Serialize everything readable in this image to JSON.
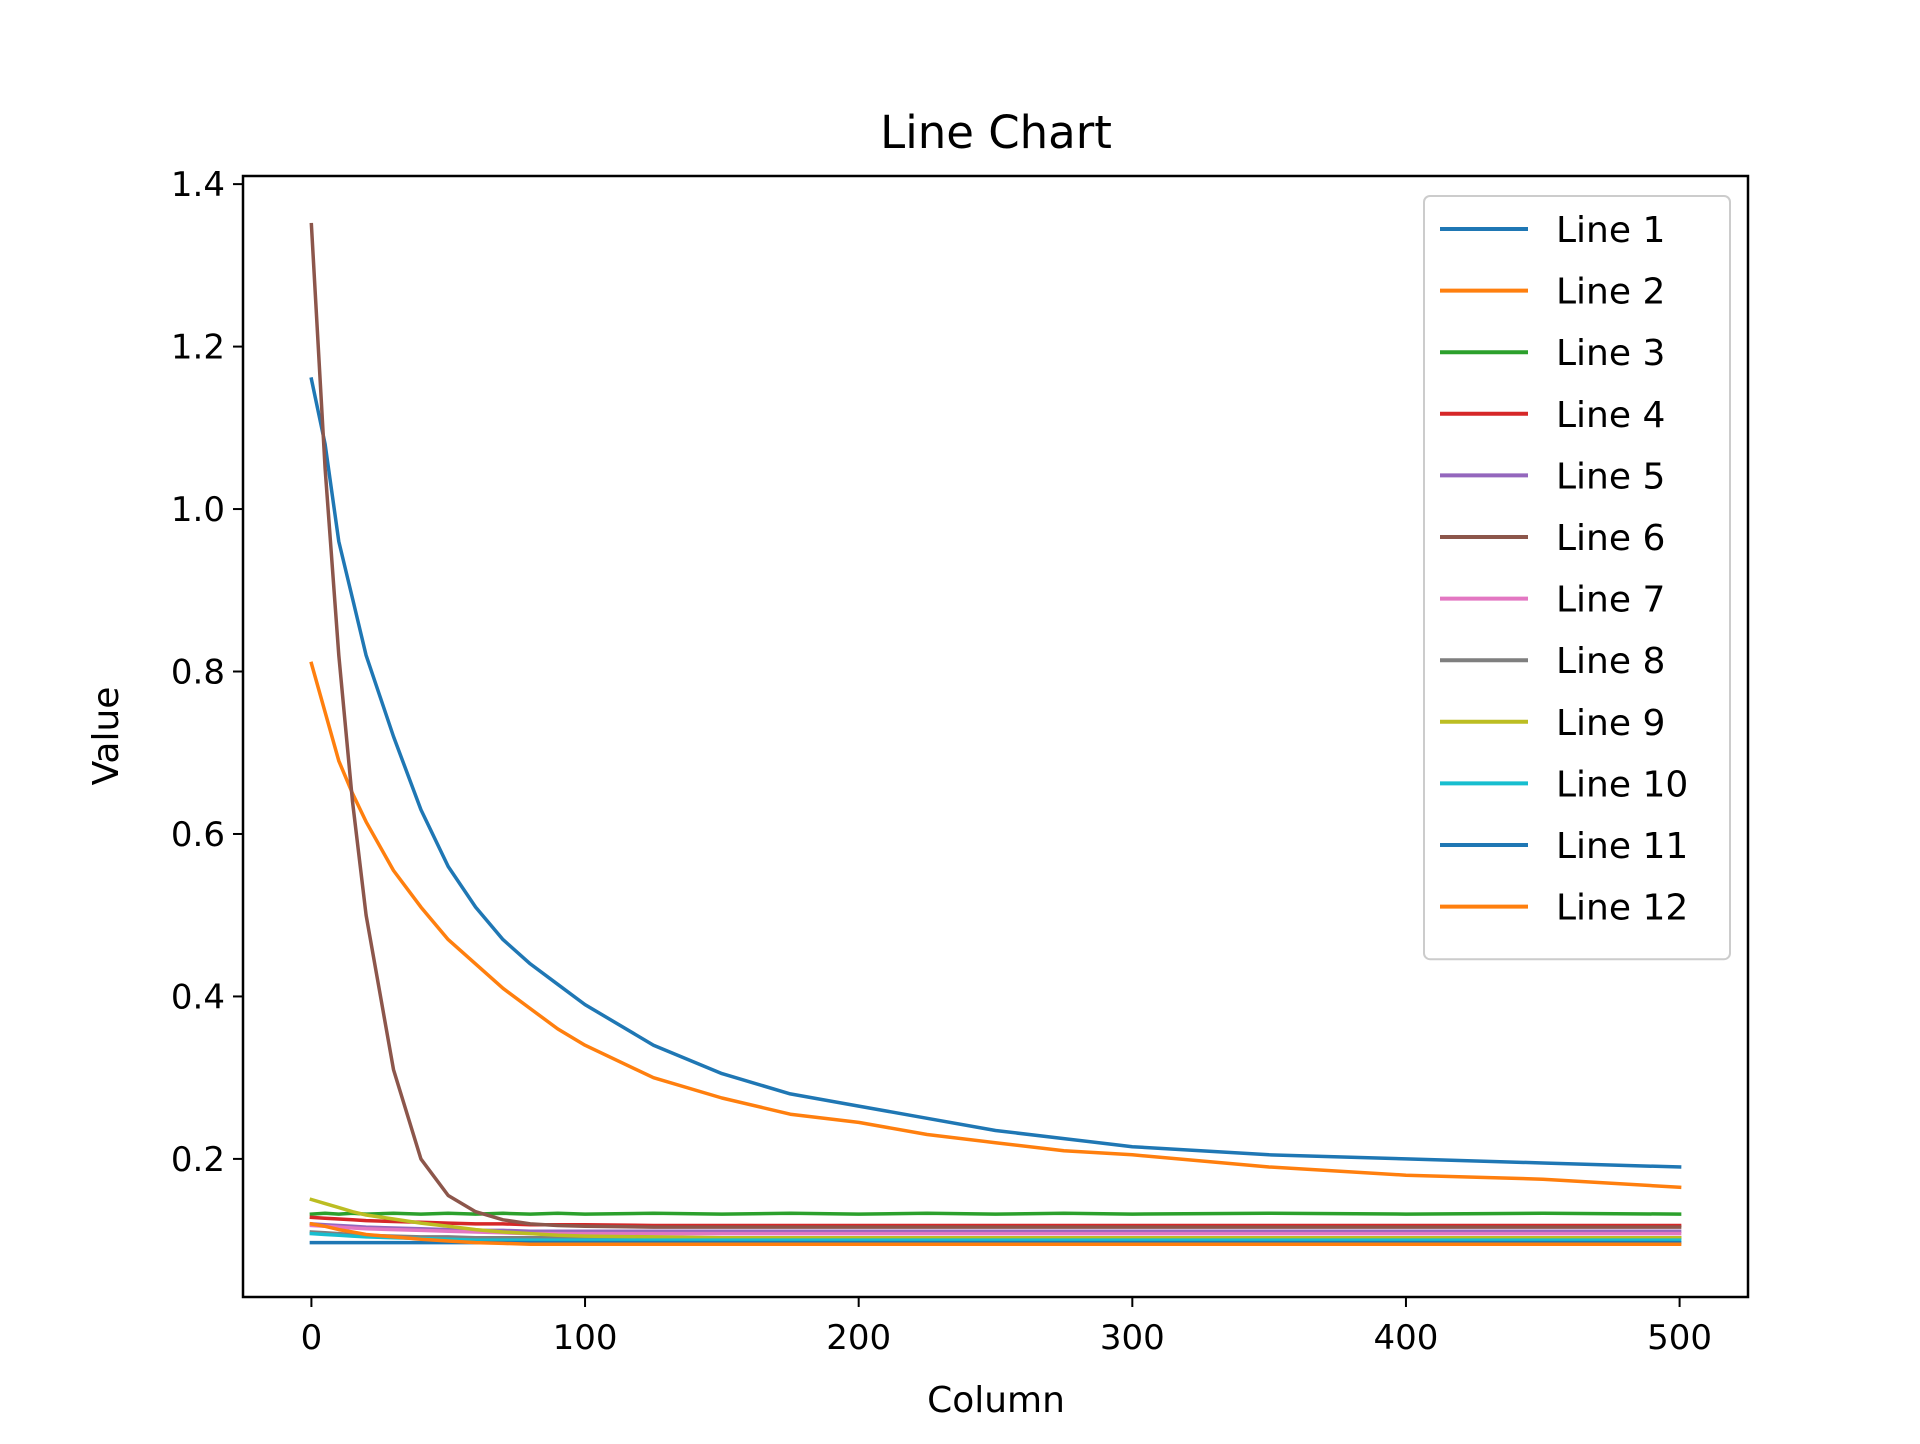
{
  "chart_data": {
    "type": "line",
    "title": "Line Chart",
    "xlabel": "Column",
    "ylabel": "Value",
    "xlim": [
      -25,
      525
    ],
    "ylim": [
      0.03,
      1.41
    ],
    "x_ticks": [
      0,
      100,
      200,
      300,
      400,
      500
    ],
    "y_ticks": [
      0.2,
      0.4,
      0.6,
      0.8,
      1.0,
      1.2,
      1.4
    ],
    "x_tick_labels": [
      "0",
      "100",
      "200",
      "300",
      "400",
      "500"
    ],
    "y_tick_labels": [
      "0.2",
      "0.4",
      "0.6",
      "0.8",
      "1.0",
      "1.2",
      "1.4"
    ],
    "grid": false,
    "legend_position": "top-right",
    "x": [
      0,
      5,
      10,
      15,
      20,
      30,
      40,
      50,
      60,
      70,
      80,
      90,
      100,
      125,
      150,
      175,
      200,
      225,
      250,
      275,
      300,
      350,
      400,
      450,
      500
    ],
    "series": [
      {
        "name": "Line 1",
        "color": "#1f77b4",
        "values": [
          1.16,
          1.08,
          0.96,
          0.89,
          0.82,
          0.72,
          0.63,
          0.56,
          0.51,
          0.47,
          0.44,
          0.415,
          0.39,
          0.34,
          0.305,
          0.28,
          0.265,
          0.25,
          0.235,
          0.225,
          0.215,
          0.205,
          0.2,
          0.195,
          0.19
        ]
      },
      {
        "name": "Line 2",
        "color": "#ff7f0e",
        "values": [
          0.81,
          0.75,
          0.69,
          0.65,
          0.615,
          0.555,
          0.51,
          0.47,
          0.44,
          0.41,
          0.385,
          0.36,
          0.34,
          0.3,
          0.275,
          0.255,
          0.245,
          0.23,
          0.22,
          0.21,
          0.205,
          0.19,
          0.18,
          0.175,
          0.165
        ]
      },
      {
        "name": "Line 3",
        "color": "#2ca02c",
        "values": [
          0.132,
          0.133,
          0.132,
          0.133,
          0.132,
          0.133,
          0.132,
          0.133,
          0.132,
          0.133,
          0.132,
          0.133,
          0.132,
          0.133,
          0.132,
          0.133,
          0.132,
          0.133,
          0.132,
          0.133,
          0.132,
          0.133,
          0.132,
          0.133,
          0.132
        ]
      },
      {
        "name": "Line 4",
        "color": "#d62728",
        "values": [
          0.128,
          0.127,
          0.126,
          0.125,
          0.124,
          0.123,
          0.122,
          0.121,
          0.12,
          0.12,
          0.119,
          0.119,
          0.119,
          0.118,
          0.118,
          0.118,
          0.118,
          0.118,
          0.118,
          0.118,
          0.118,
          0.118,
          0.118,
          0.118,
          0.118
        ]
      },
      {
        "name": "Line 5",
        "color": "#9467bd",
        "values": [
          0.12,
          0.119,
          0.118,
          0.117,
          0.116,
          0.115,
          0.114,
          0.113,
          0.112,
          0.112,
          0.111,
          0.111,
          0.111,
          0.111,
          0.111,
          0.111,
          0.111,
          0.111,
          0.111,
          0.111,
          0.111,
          0.111,
          0.111,
          0.111,
          0.111
        ]
      },
      {
        "name": "Line 6",
        "color": "#8c564b",
        "values": [
          1.35,
          1.05,
          0.82,
          0.64,
          0.5,
          0.31,
          0.2,
          0.155,
          0.135,
          0.125,
          0.12,
          0.118,
          0.117,
          0.116,
          0.116,
          0.116,
          0.116,
          0.116,
          0.116,
          0.116,
          0.116,
          0.116,
          0.116,
          0.116,
          0.116
        ]
      },
      {
        "name": "Line 7",
        "color": "#e377c2",
        "values": [
          0.118,
          0.117,
          0.116,
          0.115,
          0.114,
          0.113,
          0.112,
          0.111,
          0.11,
          0.109,
          0.108,
          0.108,
          0.108,
          0.108,
          0.108,
          0.108,
          0.108,
          0.108,
          0.108,
          0.108,
          0.108,
          0.108,
          0.108,
          0.108,
          0.108
        ]
      },
      {
        "name": "Line 8",
        "color": "#7f7f7f",
        "values": [
          0.11,
          0.109,
          0.108,
          0.107,
          0.106,
          0.105,
          0.104,
          0.104,
          0.103,
          0.103,
          0.103,
          0.103,
          0.103,
          0.103,
          0.103,
          0.103,
          0.103,
          0.103,
          0.103,
          0.103,
          0.103,
          0.103,
          0.103,
          0.103,
          0.103
        ]
      },
      {
        "name": "Line 9",
        "color": "#bcbd22",
        "values": [
          0.15,
          0.145,
          0.14,
          0.135,
          0.131,
          0.126,
          0.121,
          0.117,
          0.113,
          0.11,
          0.108,
          0.106,
          0.105,
          0.104,
          0.103,
          0.103,
          0.103,
          0.103,
          0.103,
          0.103,
          0.103,
          0.103,
          0.103,
          0.103,
          0.103
        ]
      },
      {
        "name": "Line 10",
        "color": "#17becf",
        "values": [
          0.108,
          0.107,
          0.106,
          0.105,
          0.104,
          0.103,
          0.102,
          0.101,
          0.1,
          0.1,
          0.1,
          0.1,
          0.1,
          0.1,
          0.1,
          0.1,
          0.1,
          0.1,
          0.1,
          0.1,
          0.1,
          0.1,
          0.1,
          0.1,
          0.1
        ]
      },
      {
        "name": "Line 11",
        "color": "#1f77b4",
        "values": [
          0.097,
          0.097,
          0.097,
          0.097,
          0.097,
          0.097,
          0.097,
          0.097,
          0.097,
          0.097,
          0.097,
          0.097,
          0.097,
          0.097,
          0.097,
          0.097,
          0.097,
          0.097,
          0.097,
          0.097,
          0.097,
          0.097,
          0.097,
          0.097,
          0.097
        ]
      },
      {
        "name": "Line 12",
        "color": "#ff7f0e",
        "values": [
          0.12,
          0.117,
          0.113,
          0.11,
          0.107,
          0.104,
          0.101,
          0.099,
          0.097,
          0.096,
          0.095,
          0.095,
          0.095,
          0.095,
          0.095,
          0.095,
          0.095,
          0.095,
          0.095,
          0.095,
          0.095,
          0.095,
          0.095,
          0.095,
          0.095
        ]
      }
    ]
  }
}
